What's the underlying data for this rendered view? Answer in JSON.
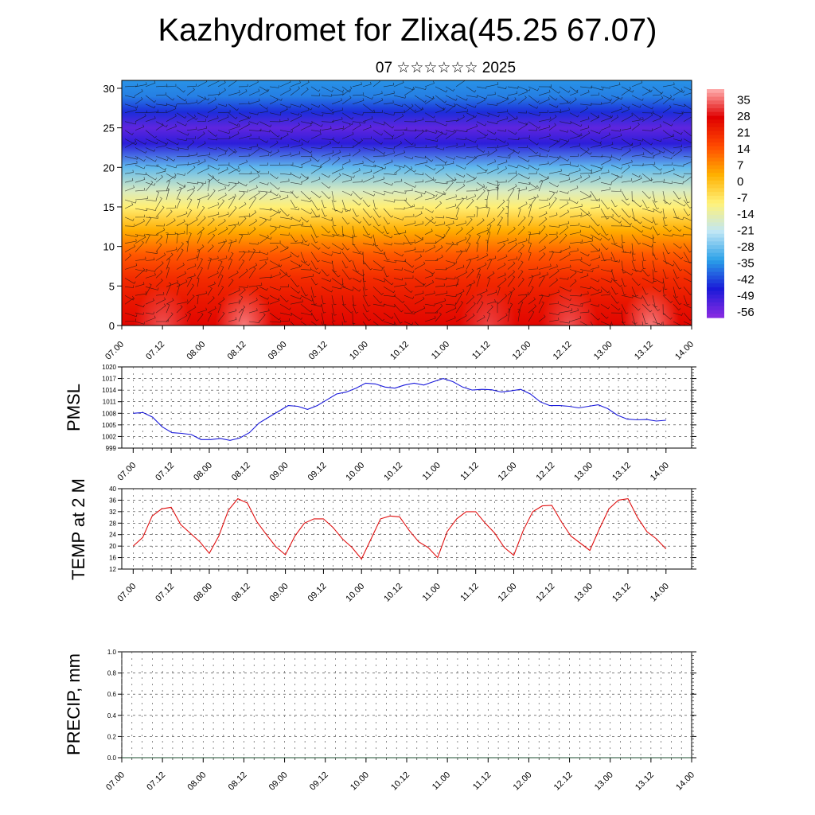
{
  "header": {
    "title": "Kazhydromet for Zlixa(45.25 67.07)",
    "subtitle": "07 ☆☆☆☆☆☆ 2025"
  },
  "colors": {
    "pmsl_line": "#1a1adb",
    "temp_line": "#e01010",
    "grid": "#222222",
    "colormap": [
      "#8a2be2",
      "#1a1ad8",
      "#2aa0e8",
      "#bfe6f5",
      "#fff27a",
      "#ffb000",
      "#ff4a00",
      "#e00000",
      "#ffb0b0"
    ]
  },
  "chart_data": [
    {
      "type": "heatmap",
      "title": "",
      "xlabel": "",
      "ylabel": "",
      "x_tick_labels": [
        "07.00",
        "07.12",
        "08.00",
        "08.12",
        "09.00",
        "09.12",
        "10.00",
        "10.12",
        "11.00",
        "11.12",
        "12.00",
        "12.12",
        "13.00",
        "13.12",
        "14.00"
      ],
      "y_ticks": [
        0,
        5,
        10,
        15,
        20,
        25,
        30
      ],
      "ylim": [
        0,
        31
      ],
      "colorbar": {
        "labels": [
          "35",
          "28",
          "21",
          "14",
          "7",
          "0",
          "-7",
          "-14",
          "-21",
          "-28",
          "-35",
          "-42",
          "-49",
          "-56"
        ],
        "range": [
          -63,
          42
        ]
      },
      "vertical_profile": [
        {
          "level": 0,
          "value": 28
        },
        {
          "level": 3,
          "value": 25
        },
        {
          "level": 6,
          "value": 21
        },
        {
          "level": 9,
          "value": 14
        },
        {
          "level": 12,
          "value": 3
        },
        {
          "level": 15,
          "value": -10
        },
        {
          "level": 17,
          "value": -18
        },
        {
          "level": 20,
          "value": -32
        },
        {
          "level": 23,
          "value": -52
        },
        {
          "level": 25,
          "value": -58
        },
        {
          "level": 27,
          "value": -48
        },
        {
          "level": 29,
          "value": -40
        },
        {
          "level": 31,
          "value": -38
        }
      ],
      "warm_spots": [
        {
          "time": "07.12",
          "value": 35
        },
        {
          "time": "08.12",
          "value": 38
        },
        {
          "time": "11.12",
          "value": 34
        },
        {
          "time": "12.12",
          "value": 35
        },
        {
          "time": "13.12",
          "value": 38
        }
      ],
      "overlay": "wind barbs"
    },
    {
      "type": "line",
      "ylabel": "PMSL",
      "ylim": [
        999,
        1020
      ],
      "y_ticks": [
        999,
        1002,
        1005,
        1008,
        1011,
        1014,
        1017,
        1020
      ],
      "x_tick_labels": [
        "07.00",
        "07.12",
        "08.00",
        "08.12",
        "09.00",
        "09.12",
        "10.00",
        "10.12",
        "11.00",
        "11.12",
        "12.00",
        "12.12",
        "13.00",
        "13.12",
        "14.00"
      ],
      "grid": true,
      "series": [
        {
          "values": [
            1008,
            1008.2,
            1007,
            1004.5,
            1003,
            1002.8,
            1002.5,
            1001.2,
            1001.2,
            1001.5,
            1001,
            1001.6,
            1003,
            1005.5,
            1007,
            1008.5,
            1010,
            1009.8,
            1009,
            1010,
            1011.5,
            1013,
            1013.5,
            1014.5,
            1015.8,
            1015.6,
            1014.8,
            1014.5,
            1015.3,
            1015.8,
            1015.3,
            1016.2,
            1017,
            1016.2,
            1014.8,
            1014,
            1014.2,
            1014.1,
            1013.5,
            1013.8,
            1014.2,
            1013,
            1011,
            1010,
            1010,
            1009.8,
            1009.4,
            1009.8,
            1010.2,
            1009.2,
            1007.5,
            1006.5,
            1006.3,
            1006.4,
            1006,
            1006.2
          ]
        }
      ]
    },
    {
      "type": "line",
      "ylabel": "TEMP at 2 M",
      "ylim": [
        12,
        40
      ],
      "y_ticks": [
        12,
        16,
        20,
        24,
        28,
        32,
        36,
        40
      ],
      "x_tick_labels": [
        "07.00",
        "07.12",
        "08.00",
        "08.12",
        "09.00",
        "09.12",
        "10.00",
        "10.12",
        "11.00",
        "11.12",
        "12.00",
        "12.12",
        "13.00",
        "13.12",
        "14.00"
      ],
      "grid": true,
      "series": [
        {
          "values": [
            20,
            23,
            30.5,
            33,
            33.5,
            27.5,
            24.5,
            21.5,
            17.5,
            23.5,
            32.5,
            36.5,
            35,
            28.5,
            24,
            19.8,
            17,
            23.5,
            28,
            29.5,
            29.5,
            26.5,
            22.5,
            19.5,
            15.5,
            22.5,
            29.5,
            30.5,
            30.2,
            25.5,
            21.5,
            19.5,
            16,
            25,
            29.5,
            32,
            32,
            28,
            24.5,
            19.5,
            16.8,
            25.5,
            32,
            34,
            34.2,
            28.5,
            23.5,
            21,
            18.5,
            26,
            33,
            36,
            36.5,
            30,
            25,
            22.5,
            19
          ]
        }
      ]
    },
    {
      "type": "line",
      "ylabel": "PRECIP, mm",
      "ylim": [
        0,
        1
      ],
      "y_ticks": [
        "0.0",
        "0.2",
        "0.4",
        "0.6",
        "0.8",
        "1.0"
      ],
      "x_tick_labels": [
        "07.00",
        "07.12",
        "08.00",
        "08.12",
        "09.00",
        "09.12",
        "10.00",
        "10.12",
        "11.00",
        "11.12",
        "12.00",
        "12.12",
        "13.00",
        "13.12",
        "14.00"
      ],
      "grid": true,
      "series": [
        {
          "values": [
            0,
            0,
            0,
            0,
            0,
            0,
            0,
            0,
            0,
            0,
            0,
            0,
            0,
            0,
            0,
            0,
            0,
            0,
            0,
            0,
            0,
            0,
            0,
            0,
            0,
            0,
            0,
            0,
            0
          ]
        }
      ]
    }
  ]
}
